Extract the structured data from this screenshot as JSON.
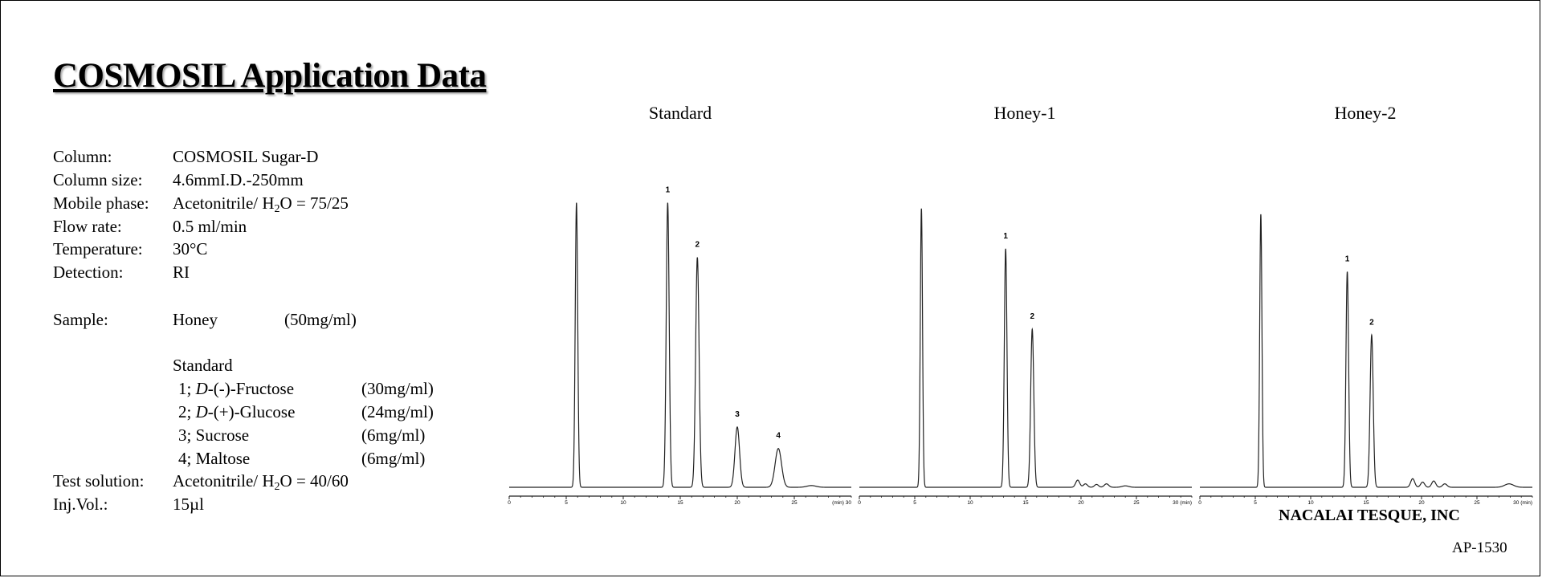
{
  "title": "COSMOSIL Application Data",
  "conditions": {
    "column_label": "Column:",
    "column_value": "COSMOSIL Sugar-D",
    "size_label": "Column size:",
    "size_value": "4.6mmI.D.-250mm",
    "mobile_label": "Mobile phase:",
    "mobile_pre": "Acetonitrile/ H",
    "mobile_sub": "2",
    "mobile_post": "O = 75/25",
    "flow_label": "Flow rate:",
    "flow_value": "0.5 ml/min",
    "temp_label": "Temperature:",
    "temp_value": "30°C",
    "detect_label": "Detection:",
    "detect_value": "RI",
    "sample_label": "Sample:",
    "sample_name": "Honey",
    "sample_conc": "(50mg/ml)",
    "standard_heading": "Standard",
    "standards": [
      {
        "num": "1; ",
        "prefix": "D",
        "name": "-(-)-Fructose",
        "conc": "(30mg/ml)"
      },
      {
        "num": "2; ",
        "prefix": "D",
        "name": "-(+)-Glucose",
        "conc": "(24mg/ml)"
      },
      {
        "num": "3; ",
        "prefix": "",
        "name": "Sucrose",
        "conc": "(6mg/ml)"
      },
      {
        "num": "4; ",
        "prefix": "",
        "name": "Maltose",
        "conc": "(6mg/ml)"
      }
    ],
    "test_label": "Test solution:",
    "test_pre": "Acetonitrile/ H",
    "test_sub": "2",
    "test_post": "O = 40/60",
    "inj_label": "Inj.Vol.:",
    "inj_value": "15µl"
  },
  "chart_data": [
    {
      "type": "line",
      "title": "Standard",
      "x_unit_label": "(min) 30",
      "xlim": [
        0,
        30
      ],
      "xticks": [
        "0",
        "5",
        "10",
        "15",
        "20",
        "25"
      ],
      "peaks": [
        {
          "t": 5.9,
          "h": 0.99,
          "w": 0.11,
          "label": ""
        },
        {
          "t": 13.9,
          "h": 0.99,
          "w": 0.13,
          "label": "1"
        },
        {
          "t": 16.5,
          "h": 0.8,
          "w": 0.15,
          "label": "2"
        },
        {
          "t": 20.0,
          "h": 0.21,
          "w": 0.2,
          "label": "3"
        },
        {
          "t": 23.6,
          "h": 0.135,
          "w": 0.28,
          "label": "4"
        },
        {
          "t": 26.5,
          "h": 0.006,
          "w": 0.4,
          "label": ""
        }
      ]
    },
    {
      "type": "line",
      "title": "Honey-1",
      "x_unit_label": "30 (min)",
      "xlim": [
        0,
        30
      ],
      "xticks": [
        "0",
        "5",
        "10",
        "15",
        "20",
        "25"
      ],
      "peaks": [
        {
          "t": 5.6,
          "h": 0.97,
          "w": 0.1,
          "label": ""
        },
        {
          "t": 13.2,
          "h": 0.83,
          "w": 0.12,
          "label": "1"
        },
        {
          "t": 15.6,
          "h": 0.55,
          "w": 0.14,
          "label": "2"
        },
        {
          "t": 19.7,
          "h": 0.025,
          "w": 0.18,
          "label": ""
        },
        {
          "t": 20.4,
          "h": 0.012,
          "w": 0.18,
          "label": ""
        },
        {
          "t": 21.4,
          "h": 0.01,
          "w": 0.18,
          "label": ""
        },
        {
          "t": 22.3,
          "h": 0.012,
          "w": 0.2,
          "label": ""
        },
        {
          "t": 24.0,
          "h": 0.005,
          "w": 0.3,
          "label": ""
        }
      ]
    },
    {
      "type": "line",
      "title": "Honey-2",
      "x_unit_label": "30 (min)",
      "xlim": [
        0,
        30
      ],
      "xticks": [
        "0",
        "5",
        "10",
        "15",
        "20",
        "25"
      ],
      "peaks": [
        {
          "t": 5.5,
          "h": 0.95,
          "w": 0.1,
          "label": ""
        },
        {
          "t": 13.3,
          "h": 0.75,
          "w": 0.12,
          "label": "1"
        },
        {
          "t": 15.5,
          "h": 0.53,
          "w": 0.14,
          "label": "2"
        },
        {
          "t": 19.2,
          "h": 0.03,
          "w": 0.18,
          "label": ""
        },
        {
          "t": 20.1,
          "h": 0.018,
          "w": 0.18,
          "label": ""
        },
        {
          "t": 21.1,
          "h": 0.022,
          "w": 0.18,
          "label": ""
        },
        {
          "t": 22.1,
          "h": 0.012,
          "w": 0.2,
          "label": ""
        },
        {
          "t": 27.9,
          "h": 0.012,
          "w": 0.4,
          "label": ""
        }
      ]
    }
  ],
  "company": "NACALAI TESQUE, INC",
  "doc_code": "AP-1530"
}
